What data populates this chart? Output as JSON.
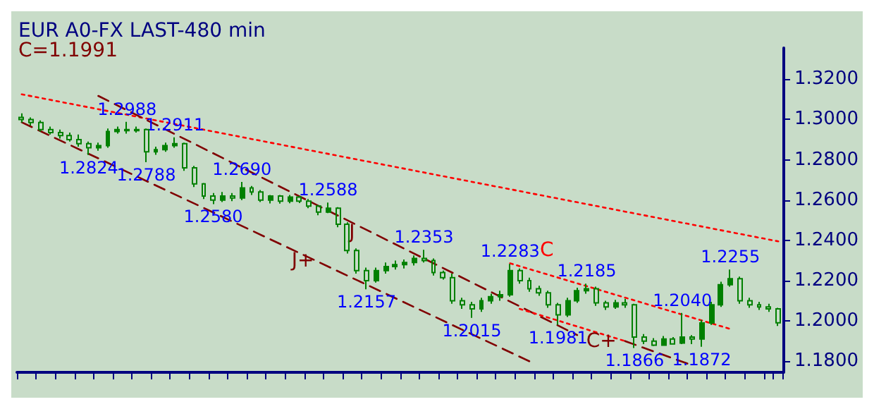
{
  "chart_data": {
    "type": "candlestick",
    "title": "EUR A0-FX LAST-480 min",
    "subtitle": "C=1.1991",
    "categories": [
      null,
      null,
      null,
      null,
      null,
      null,
      null,
      null,
      null,
      null,
      null,
      null,
      null,
      null,
      null,
      null,
      null,
      null,
      null,
      null,
      null,
      null,
      null,
      null,
      null,
      null,
      null,
      null,
      null,
      null,
      null,
      null,
      null,
      null,
      null,
      null,
      null,
      null,
      null,
      null,
      null,
      null,
      null,
      null,
      null,
      null,
      null,
      null,
      null,
      null,
      null,
      null,
      null,
      null,
      null,
      null,
      null,
      null,
      null,
      null,
      null,
      null,
      null,
      null,
      null,
      null,
      null,
      null,
      null,
      null,
      null,
      null,
      null,
      null,
      null,
      null,
      null,
      null,
      null,
      null
    ],
    "color": "#008000",
    "ohlc": [
      [
        1.301,
        1.303,
        1.2985,
        1.3
      ],
      [
        1.3,
        1.301,
        1.297,
        1.2985
      ],
      [
        1.2985,
        1.2995,
        1.294,
        1.295
      ],
      [
        1.295,
        1.2965,
        1.2925,
        1.2935
      ],
      [
        1.2935,
        1.295,
        1.2905,
        1.292
      ],
      [
        1.292,
        1.2935,
        1.289,
        1.29
      ],
      [
        1.29,
        1.2925,
        1.2865,
        1.288
      ],
      [
        1.288,
        1.289,
        1.2824,
        1.286
      ],
      [
        1.286,
        1.2885,
        1.2845,
        1.287
      ],
      [
        1.287,
        1.2955,
        1.286,
        1.294
      ],
      [
        1.294,
        1.2965,
        1.293,
        1.295
      ],
      [
        1.295,
        1.2988,
        1.293,
        1.2945
      ],
      [
        1.2945,
        1.2965,
        1.2935,
        1.295
      ],
      [
        1.295,
        1.2955,
        1.2788,
        1.284
      ],
      [
        1.284,
        1.2865,
        1.2825,
        1.285
      ],
      [
        1.285,
        1.2885,
        1.284,
        1.287
      ],
      [
        1.287,
        1.2911,
        1.286,
        1.288
      ],
      [
        1.288,
        1.2885,
        1.2745,
        1.276
      ],
      [
        1.276,
        1.277,
        1.2665,
        1.268
      ],
      [
        1.268,
        1.2685,
        1.2605,
        1.262
      ],
      [
        1.262,
        1.2635,
        1.258,
        1.26
      ],
      [
        1.26,
        1.264,
        1.259,
        1.262
      ],
      [
        1.262,
        1.2635,
        1.2595,
        1.261
      ],
      [
        1.261,
        1.269,
        1.26,
        1.266
      ],
      [
        1.266,
        1.267,
        1.2625,
        1.264
      ],
      [
        1.264,
        1.265,
        1.259,
        1.26
      ],
      [
        1.26,
        1.2625,
        1.2583,
        1.262
      ],
      [
        1.262,
        1.2625,
        1.2582,
        1.2595
      ],
      [
        1.2595,
        1.2625,
        1.2584,
        1.2615
      ],
      [
        1.2615,
        1.262,
        1.2585,
        1.2595
      ],
      [
        1.2595,
        1.2605,
        1.256,
        1.257
      ],
      [
        1.257,
        1.2575,
        1.2525,
        1.254
      ],
      [
        1.254,
        1.2588,
        1.2535,
        1.256
      ],
      [
        1.256,
        1.2565,
        1.2465,
        1.248
      ],
      [
        1.248,
        1.249,
        1.2335,
        1.235
      ],
      [
        1.235,
        1.236,
        1.2235,
        1.225
      ],
      [
        1.225,
        1.2265,
        1.2157,
        1.22
      ],
      [
        1.22,
        1.2265,
        1.219,
        1.225
      ],
      [
        1.225,
        1.229,
        1.2235,
        1.227
      ],
      [
        1.227,
        1.23,
        1.2255,
        1.228
      ],
      [
        1.228,
        1.2305,
        1.226,
        1.229
      ],
      [
        1.229,
        1.2325,
        1.2275,
        1.231
      ],
      [
        1.231,
        1.2353,
        1.229,
        1.23
      ],
      [
        1.23,
        1.231,
        1.2225,
        1.224
      ],
      [
        1.224,
        1.225,
        1.2205,
        1.2215
      ],
      [
        1.2215,
        1.2235,
        1.2085,
        1.21
      ],
      [
        1.21,
        1.2115,
        1.206,
        1.208
      ],
      [
        1.208,
        1.2095,
        1.2015,
        1.206
      ],
      [
        1.206,
        1.2115,
        1.2045,
        1.21
      ],
      [
        1.21,
        1.2135,
        1.2085,
        1.212
      ],
      [
        1.212,
        1.215,
        1.21,
        1.213
      ],
      [
        1.213,
        1.2283,
        1.212,
        1.225
      ],
      [
        1.225,
        1.226,
        1.2185,
        1.22
      ],
      [
        1.22,
        1.2215,
        1.2145,
        1.216
      ],
      [
        1.216,
        1.2175,
        1.2125,
        1.214
      ],
      [
        1.214,
        1.215,
        1.2065,
        1.208
      ],
      [
        1.208,
        1.209,
        1.1981,
        1.203
      ],
      [
        1.203,
        1.2115,
        1.202,
        1.21
      ],
      [
        1.21,
        1.2165,
        1.209,
        1.215
      ],
      [
        1.215,
        1.2185,
        1.2135,
        1.216
      ],
      [
        1.216,
        1.217,
        1.2075,
        1.209
      ],
      [
        1.209,
        1.21,
        1.2055,
        1.207
      ],
      [
        1.207,
        1.2105,
        1.206,
        1.209
      ],
      [
        1.209,
        1.211,
        1.2065,
        1.208
      ],
      [
        1.208,
        1.2085,
        1.1866,
        1.192
      ],
      [
        1.192,
        1.1935,
        1.1885,
        1.19
      ],
      [
        1.19,
        1.1915,
        1.1875,
        1.188
      ],
      [
        1.188,
        1.1925,
        1.1876,
        1.191
      ],
      [
        1.191,
        1.192,
        1.1882,
        1.1886
      ],
      [
        1.189,
        1.204,
        1.1885,
        1.192
      ],
      [
        1.192,
        1.193,
        1.1885,
        1.191
      ],
      [
        1.191,
        1.2005,
        1.1872,
        1.199
      ],
      [
        1.199,
        1.2095,
        1.198,
        1.208
      ],
      [
        1.208,
        1.2195,
        1.207,
        1.218
      ],
      [
        1.218,
        1.2255,
        1.217,
        1.221
      ],
      [
        1.221,
        1.222,
        1.2085,
        1.21
      ],
      [
        1.21,
        1.2115,
        1.2065,
        1.208
      ],
      [
        1.208,
        1.2095,
        1.2055,
        1.207
      ],
      [
        1.207,
        1.2085,
        1.2045,
        1.206
      ],
      [
        1.206,
        1.2065,
        1.1975,
        1.1991
      ]
    ],
    "series": [
      {
        "type": "line",
        "color": "#ff0000",
        "line_style": "dotted",
        "values": [
          1.3125,
          null,
          null,
          null,
          null,
          null,
          null,
          null,
          null,
          null,
          null,
          null,
          null,
          null,
          null,
          null,
          null,
          null,
          null,
          null,
          null,
          null,
          null,
          null,
          null,
          null,
          null,
          null,
          null,
          null,
          null,
          null,
          null,
          null,
          null,
          null,
          null,
          null,
          null,
          null,
          null,
          null,
          null,
          null,
          null,
          null,
          null,
          null,
          null,
          null,
          null,
          null,
          null,
          null,
          null,
          null,
          null,
          null,
          null,
          null,
          null,
          null,
          null,
          null,
          null,
          null,
          null,
          null,
          null,
          null,
          null,
          null,
          null,
          null,
          null,
          null,
          null,
          null,
          null,
          1.2395
        ]
      },
      {
        "type": "line",
        "name": "J",
        "color": "#800000",
        "line_style": "dashed",
        "values": [
          null,
          null,
          null,
          null,
          null,
          null,
          null,
          null,
          1.3117,
          null,
          null,
          null,
          null,
          null,
          null,
          null,
          null,
          null,
          null,
          null,
          null,
          null,
          null,
          null,
          null,
          null,
          null,
          null,
          null,
          null,
          null,
          null,
          null,
          null,
          null,
          null,
          null,
          null,
          null,
          null,
          null,
          null,
          null,
          null,
          null,
          null,
          null,
          null,
          null,
          null,
          null,
          null,
          null,
          null,
          null,
          null,
          null,
          null,
          1.193,
          null,
          null,
          null,
          null,
          null,
          null,
          null,
          null,
          null,
          null,
          null,
          null,
          null,
          null,
          null,
          null,
          null,
          null,
          null,
          null,
          null
        ]
      },
      {
        "type": "line",
        "name": "J+",
        "color": "#800000",
        "line_style": "dashed",
        "values": [
          1.2986,
          null,
          null,
          null,
          null,
          null,
          null,
          null,
          null,
          null,
          null,
          null,
          null,
          null,
          null,
          null,
          null,
          null,
          null,
          null,
          null,
          null,
          null,
          null,
          null,
          null,
          null,
          null,
          null,
          null,
          null,
          null,
          null,
          null,
          null,
          null,
          null,
          null,
          null,
          null,
          null,
          null,
          null,
          null,
          null,
          null,
          null,
          null,
          null,
          null,
          null,
          null,
          null,
          1.18,
          null,
          null,
          null,
          null,
          null,
          null,
          null,
          null,
          null,
          null,
          null,
          null,
          null,
          null,
          null,
          null,
          null,
          null,
          null,
          null,
          null,
          null,
          null,
          null,
          null,
          null
        ]
      },
      {
        "type": "line",
        "name": "C",
        "color": "#ff0000",
        "line_style": "dotted",
        "values": [
          null,
          null,
          null,
          null,
          null,
          null,
          null,
          null,
          null,
          null,
          null,
          null,
          null,
          null,
          null,
          null,
          null,
          null,
          null,
          null,
          null,
          null,
          null,
          null,
          null,
          null,
          null,
          null,
          null,
          null,
          null,
          null,
          null,
          null,
          null,
          null,
          null,
          null,
          null,
          null,
          null,
          null,
          null,
          null,
          null,
          null,
          null,
          null,
          null,
          null,
          null,
          1.2286,
          null,
          null,
          null,
          null,
          null,
          null,
          null,
          null,
          null,
          null,
          null,
          null,
          null,
          null,
          null,
          null,
          null,
          null,
          null,
          null,
          null,
          null,
          1.196,
          null,
          null,
          null,
          null,
          null
        ]
      },
      {
        "type": "line",
        "color": "#ff0000",
        "line_style": "dotted",
        "values": [
          null,
          null,
          null,
          null,
          null,
          null,
          null,
          null,
          null,
          null,
          null,
          null,
          null,
          null,
          null,
          null,
          null,
          null,
          null,
          null,
          null,
          null,
          null,
          null,
          null,
          null,
          null,
          null,
          null,
          null,
          null,
          null,
          null,
          null,
          null,
          null,
          null,
          null,
          null,
          null,
          null,
          null,
          null,
          null,
          null,
          null,
          null,
          null,
          null,
          null,
          null,
          null,
          1.206,
          null,
          null,
          null,
          null,
          null,
          null,
          null,
          null,
          null,
          null,
          1.19,
          null,
          null,
          null,
          null,
          null,
          null,
          null,
          null,
          null,
          null,
          null,
          null,
          null,
          null,
          null,
          null
        ]
      },
      {
        "type": "line",
        "name": "C+",
        "color": "#800000",
        "line_style": "dashed",
        "values": [
          null,
          null,
          null,
          null,
          null,
          null,
          null,
          null,
          null,
          null,
          null,
          null,
          null,
          null,
          null,
          null,
          null,
          null,
          null,
          null,
          null,
          null,
          null,
          null,
          null,
          null,
          null,
          null,
          null,
          null,
          null,
          null,
          null,
          null,
          null,
          null,
          null,
          null,
          null,
          null,
          null,
          null,
          null,
          null,
          null,
          null,
          null,
          null,
          null,
          null,
          null,
          null,
          null,
          null,
          null,
          null,
          null,
          null,
          null,
          null,
          null,
          null,
          null,
          1.19,
          null,
          null,
          null,
          null,
          null,
          null,
          1.178,
          null,
          null,
          null,
          null,
          null,
          null,
          null,
          null,
          null
        ]
      }
    ],
    "annotations": [
      {
        "text": "1.2988",
        "y": 1.2988
      },
      {
        "text": "1.2911",
        "y": 1.2911
      },
      {
        "text": "1.2824",
        "y": 1.2824
      },
      {
        "text": "1.2788",
        "y": 1.2788
      },
      {
        "text": "1.2690",
        "y": 1.269
      },
      {
        "text": "1.2588",
        "y": 1.2588
      },
      {
        "text": "1.2580",
        "y": 1.258
      },
      {
        "text": "1.2353",
        "y": 1.2353
      },
      {
        "text": "1.2157",
        "y": 1.2157
      },
      {
        "text": "1.2283",
        "y": 1.2283
      },
      {
        "text": "1.2015",
        "y": 1.2015
      },
      {
        "text": "1.2185",
        "y": 1.2185
      },
      {
        "text": "1.1981",
        "y": 1.1981
      },
      {
        "text": "1.2040",
        "y": 1.204
      },
      {
        "text": "1.1866",
        "y": 1.1866
      },
      {
        "text": "1.1872",
        "y": 1.1872
      },
      {
        "text": "1.2255",
        "y": 1.2255
      }
    ],
    "ylim": [
      1.1745,
      1.3355
    ],
    "yticks": [
      {
        "value": 1.18,
        "label": "1.1800"
      },
      {
        "value": 1.2,
        "label": "1.2000"
      },
      {
        "value": 1.22,
        "label": "1.2200"
      },
      {
        "value": 1.24,
        "label": "1.2400"
      },
      {
        "value": 1.26,
        "label": "1.2600"
      },
      {
        "value": 1.28,
        "label": "1.2800"
      },
      {
        "value": 1.3,
        "label": "1.3000"
      },
      {
        "value": 1.32,
        "label": "1.3200"
      }
    ],
    "tick_labels": "y",
    "grid": false,
    "legend": false
  }
}
